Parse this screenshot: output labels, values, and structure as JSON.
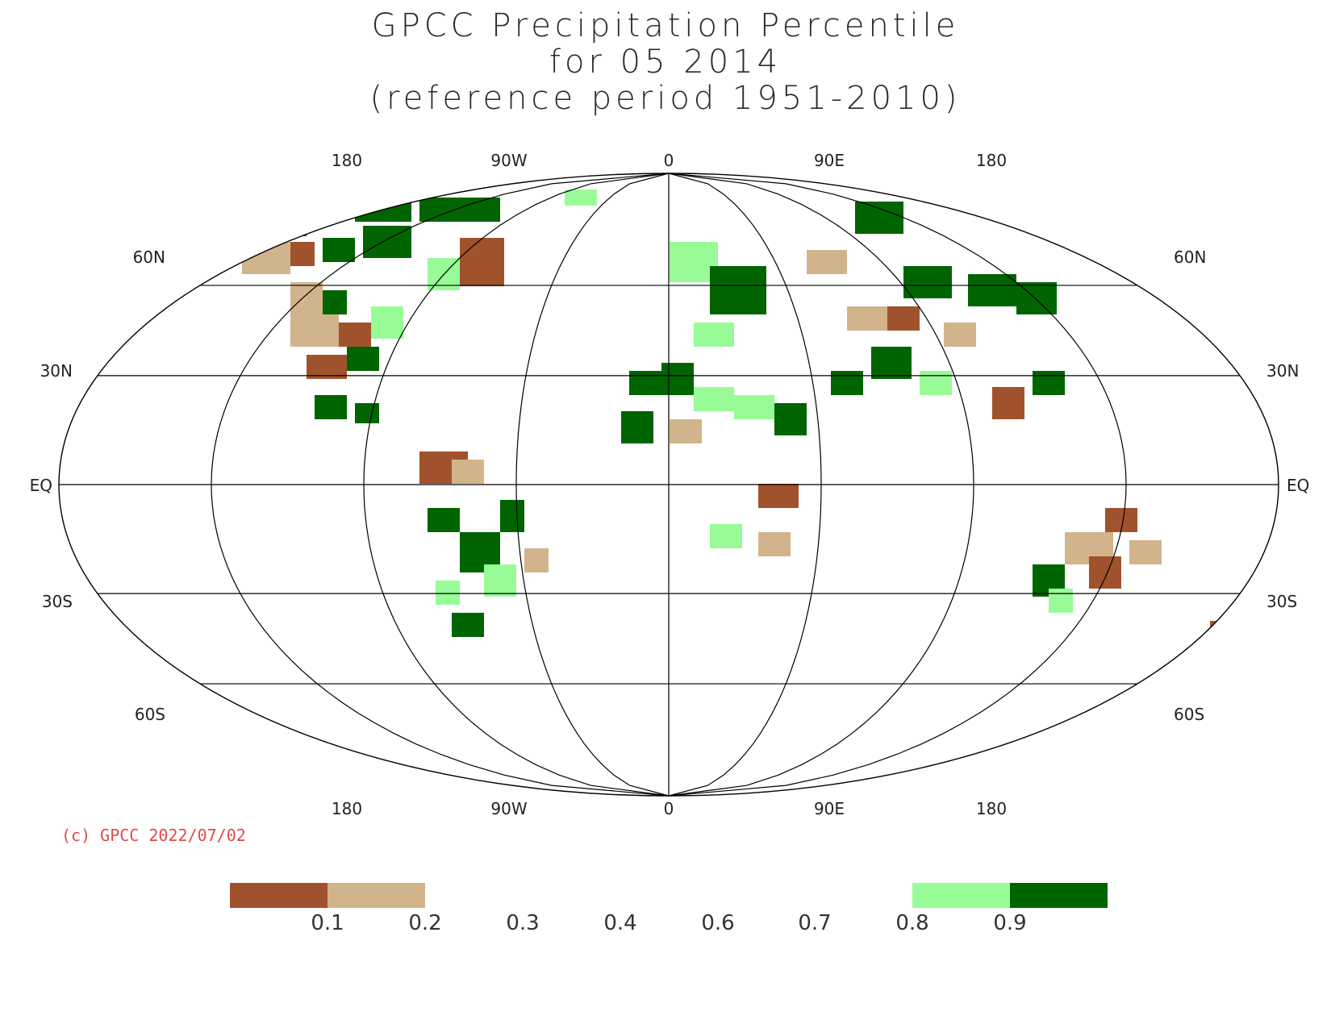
{
  "title": {
    "line1": "GPCC Precipitation Percentile",
    "line2": "for 05 2014",
    "line3": "(reference period 1951-2010)"
  },
  "map": {
    "projection": "Robinson",
    "center_longitude": 0,
    "lon_labels_top": [
      "180",
      "90W",
      "0",
      "90E",
      "180"
    ],
    "lon_labels_bottom": [
      "180",
      "90W",
      "0",
      "90E",
      "180"
    ],
    "lat_labels": [
      "60N",
      "30N",
      "EQ",
      "30S",
      "60S"
    ],
    "grid": true,
    "coastlines": true
  },
  "copyright": "(c) GPCC 2022/07/02",
  "legend": {
    "swatches": [
      {
        "range": "0-0.1",
        "color": "#a0522d"
      },
      {
        "range": "0.1-0.2",
        "color": "#d2b48c"
      },
      {
        "range": "0.8-0.9",
        "color": "#98fb98"
      },
      {
        "range": "0.9-1.0",
        "color": "#006400"
      }
    ],
    "labels": [
      "0.1",
      "0.2",
      "0.3",
      "0.4",
      "0.6",
      "0.7",
      "0.8",
      "0.9"
    ]
  }
}
